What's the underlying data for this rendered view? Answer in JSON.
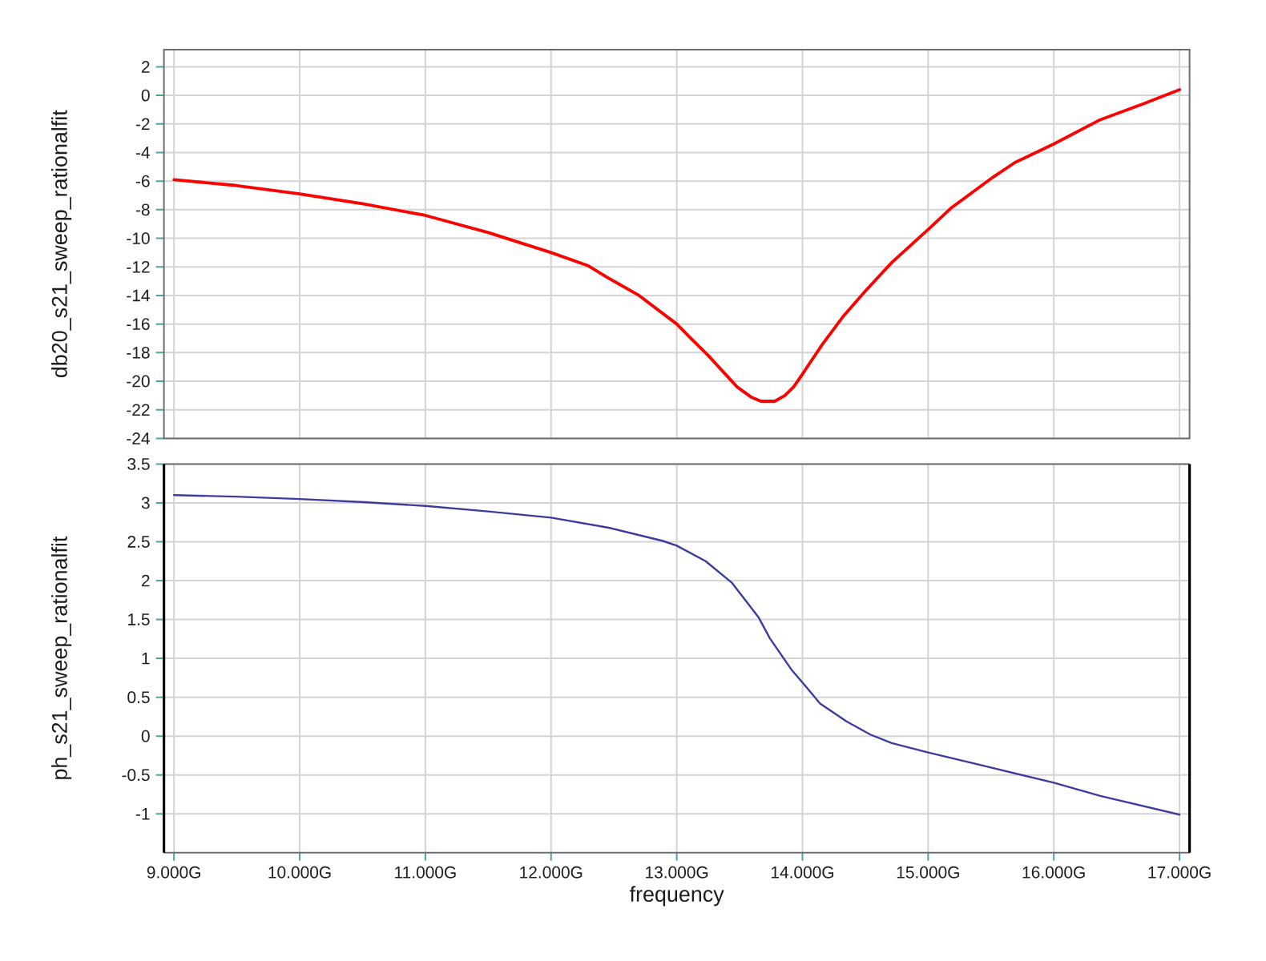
{
  "chart_data": [
    {
      "type": "line",
      "ylabel": "db20_s21_sweep_rationalfit",
      "x": [
        9.0,
        9.49,
        10.0,
        10.51,
        11.0,
        11.5,
        12.0,
        12.29,
        12.46,
        12.7,
        13.0,
        13.1,
        13.25,
        13.48,
        13.59,
        13.67,
        13.78,
        13.86,
        13.93,
        14.0,
        14.16,
        14.33,
        14.5,
        14.71,
        15.01,
        15.18,
        15.52,
        15.69,
        16.0,
        16.37,
        16.71,
        17.0
      ],
      "series": [
        {
          "color": "#ff0000",
          "values": [
            -5.9,
            -6.3,
            -6.9,
            -7.6,
            -8.4,
            -9.6,
            -11.0,
            -11.9,
            -12.8,
            -14.0,
            -16.0,
            -16.9,
            -18.2,
            -20.4,
            -21.1,
            -21.4,
            -21.4,
            -21.0,
            -20.4,
            -19.5,
            -17.4,
            -15.4,
            -13.7,
            -11.7,
            -9.3,
            -7.9,
            -5.7,
            -4.7,
            -3.4,
            -1.7,
            -0.6,
            0.4
          ]
        }
      ],
      "xlim": [
        8.92,
        17.08
      ],
      "xticks": [
        9,
        10,
        11,
        12,
        13,
        14,
        15,
        16,
        17
      ],
      "ylim": [
        -24,
        3.2
      ],
      "yticks": [
        -24,
        -22,
        -20,
        -18,
        -16,
        -14,
        -12,
        -10,
        -8,
        -6,
        -4,
        -2,
        0,
        2
      ],
      "grid": true,
      "tick_labels": "y"
    },
    {
      "type": "line",
      "xlabel": "frequency",
      "ylabel": "ph_s21_sweep_rationalfit",
      "x": [
        9.0,
        9.49,
        10.0,
        10.51,
        11.0,
        11.5,
        12.0,
        12.46,
        12.89,
        13.0,
        13.23,
        13.44,
        13.65,
        13.74,
        13.91,
        14.0,
        14.14,
        14.35,
        14.54,
        14.71,
        15.0,
        15.44,
        16.0,
        16.37,
        17.0
      ],
      "series": [
        {
          "color": "#3c3ca0",
          "values": [
            3.1,
            3.08,
            3.05,
            3.01,
            2.96,
            2.89,
            2.81,
            2.68,
            2.51,
            2.45,
            2.25,
            1.97,
            1.53,
            1.26,
            0.86,
            0.69,
            0.42,
            0.19,
            0.02,
            -0.09,
            -0.21,
            -0.38,
            -0.6,
            -0.77,
            -1.01
          ]
        }
      ],
      "xlim": [
        8.92,
        17.08
      ],
      "xticks": [
        {
          "value": 9,
          "label": "9.000G"
        },
        {
          "value": 10,
          "label": "10.000G"
        },
        {
          "value": 11,
          "label": "11.000G"
        },
        {
          "value": 12,
          "label": "12.000G"
        },
        {
          "value": 13,
          "label": "13.000G"
        },
        {
          "value": 14,
          "label": "14.000G"
        },
        {
          "value": 15,
          "label": "15.000G"
        },
        {
          "value": 16,
          "label": "16.000G"
        },
        {
          "value": 17,
          "label": "17.000G"
        }
      ],
      "ylim": [
        -1.5,
        3.5
      ],
      "yticks": [
        -1,
        -0.5,
        0,
        0.5,
        1,
        1.5,
        2,
        2.5,
        3,
        3.5
      ],
      "grid": true
    }
  ]
}
